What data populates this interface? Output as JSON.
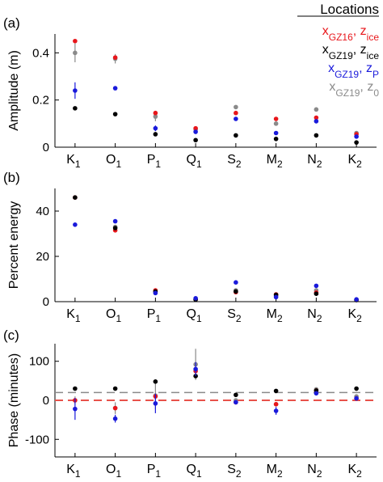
{
  "categories": [
    {
      "main": "K",
      "sub": "1"
    },
    {
      "main": "O",
      "sub": "1"
    },
    {
      "main": "P",
      "sub": "1"
    },
    {
      "main": "Q",
      "sub": "1"
    },
    {
      "main": "S",
      "sub": "2"
    },
    {
      "main": "M",
      "sub": "2"
    },
    {
      "main": "N",
      "sub": "2"
    },
    {
      "main": "K",
      "sub": "2"
    }
  ],
  "legend": {
    "title": "Locations",
    "entries": [
      {
        "color": "#e8161b",
        "parts": [
          [
            "x",
            ""
          ],
          [
            "GZ16",
            "sub"
          ],
          [
            ", ",
            ""
          ],
          [
            "z",
            ""
          ],
          [
            "ice",
            "sub"
          ]
        ]
      },
      {
        "color": "#000000",
        "parts": [
          [
            "x",
            ""
          ],
          [
            "GZ19",
            "sub"
          ],
          [
            ", ",
            ""
          ],
          [
            "z",
            ""
          ],
          [
            "ice",
            "sub"
          ]
        ]
      },
      {
        "color": "#1a1adb",
        "parts": [
          [
            "x",
            ""
          ],
          [
            "GZ19",
            "sub"
          ],
          [
            ", ",
            ""
          ],
          [
            "z",
            ""
          ],
          [
            "P",
            "sub"
          ]
        ]
      },
      {
        "color": "#8a8a8a",
        "parts": [
          [
            "x",
            ""
          ],
          [
            "GZ19",
            "sub"
          ],
          [
            ", ",
            ""
          ],
          [
            "z",
            ""
          ],
          [
            "0",
            "sub"
          ]
        ]
      }
    ]
  },
  "chart_data": [
    {
      "type": "scatter",
      "panel": "(a)",
      "ylabel": "Amplitude (m)",
      "ylim": [
        0,
        0.48
      ],
      "yticks": [
        0,
        0.2,
        0.4
      ],
      "yticklabels": [
        "0",
        "0.2",
        "0.4"
      ],
      "grid": false,
      "reference_lines": [],
      "series": [
        {
          "name": "x_GZ16, z_ice",
          "color": "#e8161b",
          "values": [
            0.45,
            0.38,
            0.145,
            0.08,
            0.145,
            0.12,
            0.125,
            0.055
          ]
        },
        {
          "name": "x_GZ19, z_ice",
          "color": "#000000",
          "values": [
            0.165,
            0.14,
            0.055,
            0.03,
            0.05,
            0.035,
            0.05,
            0.02
          ]
        },
        {
          "name": "x_GZ19, z_P",
          "color": "#1a1adb",
          "values": [
            0.24,
            0.25,
            0.08,
            0.065,
            0.12,
            0.06,
            0.11,
            0.045
          ],
          "error": [
            0.035,
            0,
            0.012,
            0.008,
            0,
            0,
            0,
            0
          ]
        },
        {
          "name": "x_GZ19, z_0",
          "color": "#8a8a8a",
          "values": [
            0.4,
            0.375,
            0.13,
            0.075,
            0.17,
            0.1,
            0.16,
            0.06
          ],
          "error": [
            0.04,
            0.02,
            0.02,
            0,
            0,
            0,
            0,
            0
          ]
        }
      ]
    },
    {
      "type": "scatter",
      "panel": "(b)",
      "ylabel": "Percent energy",
      "ylim": [
        0,
        50
      ],
      "yticks": [
        0,
        20,
        40
      ],
      "yticklabels": [
        "0",
        "20",
        "40"
      ],
      "grid": false,
      "reference_lines": [],
      "series": [
        {
          "name": "x_GZ16, z_ice",
          "color": "#e8161b",
          "values": [
            46,
            31.5,
            5,
            1.0,
            4.2,
            3.2,
            4.0,
            0.8
          ]
        },
        {
          "name": "x_GZ19, z_ice",
          "color": "#000000",
          "values": [
            46,
            32.5,
            4.5,
            0.9,
            4.5,
            3.0,
            3.5,
            0.7
          ]
        },
        {
          "name": "x_GZ19, z_P",
          "color": "#1a1adb",
          "values": [
            34,
            35.5,
            3.8,
            1.5,
            8.5,
            2.0,
            7.0,
            1.0
          ]
        },
        {
          "name": "x_GZ19, z_0",
          "color": "#8a8a8a",
          "values": [
            46,
            33,
            4.2,
            1.2,
            5.0,
            2.5,
            5.0,
            0.9
          ]
        }
      ]
    },
    {
      "type": "scatter",
      "panel": "(c)",
      "ylabel": "Phase (minutes)",
      "ylim": [
        -145,
        145
      ],
      "yticks": [
        -100,
        0,
        100
      ],
      "yticklabels": [
        "-100",
        "0",
        "100"
      ],
      "grid": false,
      "reference_lines": [
        {
          "y": 0,
          "color": "#e8524a",
          "dash": "10,6",
          "width": 2
        },
        {
          "y": 20,
          "color": "#8a8a8a",
          "dash": "10,6",
          "width": 1.5
        }
      ],
      "series": [
        {
          "name": "x_GZ16, z_ice",
          "color": "#e8161b",
          "values": [
            0,
            -20,
            10,
            75,
            -5,
            -10,
            25,
            5
          ]
        },
        {
          "name": "x_GZ19, z_ice",
          "color": "#000000",
          "values": [
            30,
            30,
            48,
            62,
            14,
            24,
            25,
            30
          ]
        },
        {
          "name": "x_GZ19, z_P",
          "color": "#1a1adb",
          "values": [
            -22,
            -47,
            -8,
            80,
            -5,
            -27,
            18,
            5
          ],
          "error": [
            28,
            10,
            25,
            18,
            0,
            10,
            0,
            0
          ]
        },
        {
          "name": "x_GZ19, z_0",
          "color": "#8a8a8a",
          "values": [
            0,
            -20,
            12,
            92,
            0,
            -10,
            28,
            10
          ],
          "error": [
            10,
            15,
            35,
            40,
            0,
            0,
            0,
            0
          ]
        }
      ]
    }
  ]
}
